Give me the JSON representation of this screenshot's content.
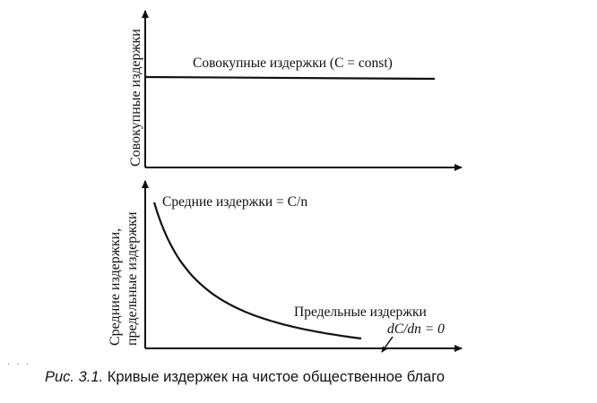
{
  "top_chart": {
    "ylabel": "Совокупные издержки",
    "line_label": "Совокупные издержки (C = const)"
  },
  "bottom_chart": {
    "ylabel_line1": "Средние издержки,",
    "ylabel_line2": "предельные издержки",
    "curve_label": "Средние издержки = C/n",
    "marginal_label_line1": "Предельные издержки",
    "marginal_label_line2": "dC/dn = 0"
  },
  "caption": {
    "number": "Рис. 3.1.",
    "text": "Кривые издержек на чистое общественное благо"
  },
  "chart_data": [
    {
      "type": "line",
      "series": [
        {
          "name": "Совокупные издержки (C = const)",
          "shape": "constant"
        }
      ],
      "ylabel": "Совокупные издержки",
      "xlabel": "",
      "grid": false
    },
    {
      "type": "line",
      "series": [
        {
          "name": "Средние издержки = C/n",
          "shape": "decreasing hyperbola"
        },
        {
          "name": "Предельные издержки dC/dn = 0",
          "shape": "zero"
        }
      ],
      "ylabel": "Средние издержки, предельные издержки",
      "xlabel": "",
      "grid": false
    }
  ]
}
